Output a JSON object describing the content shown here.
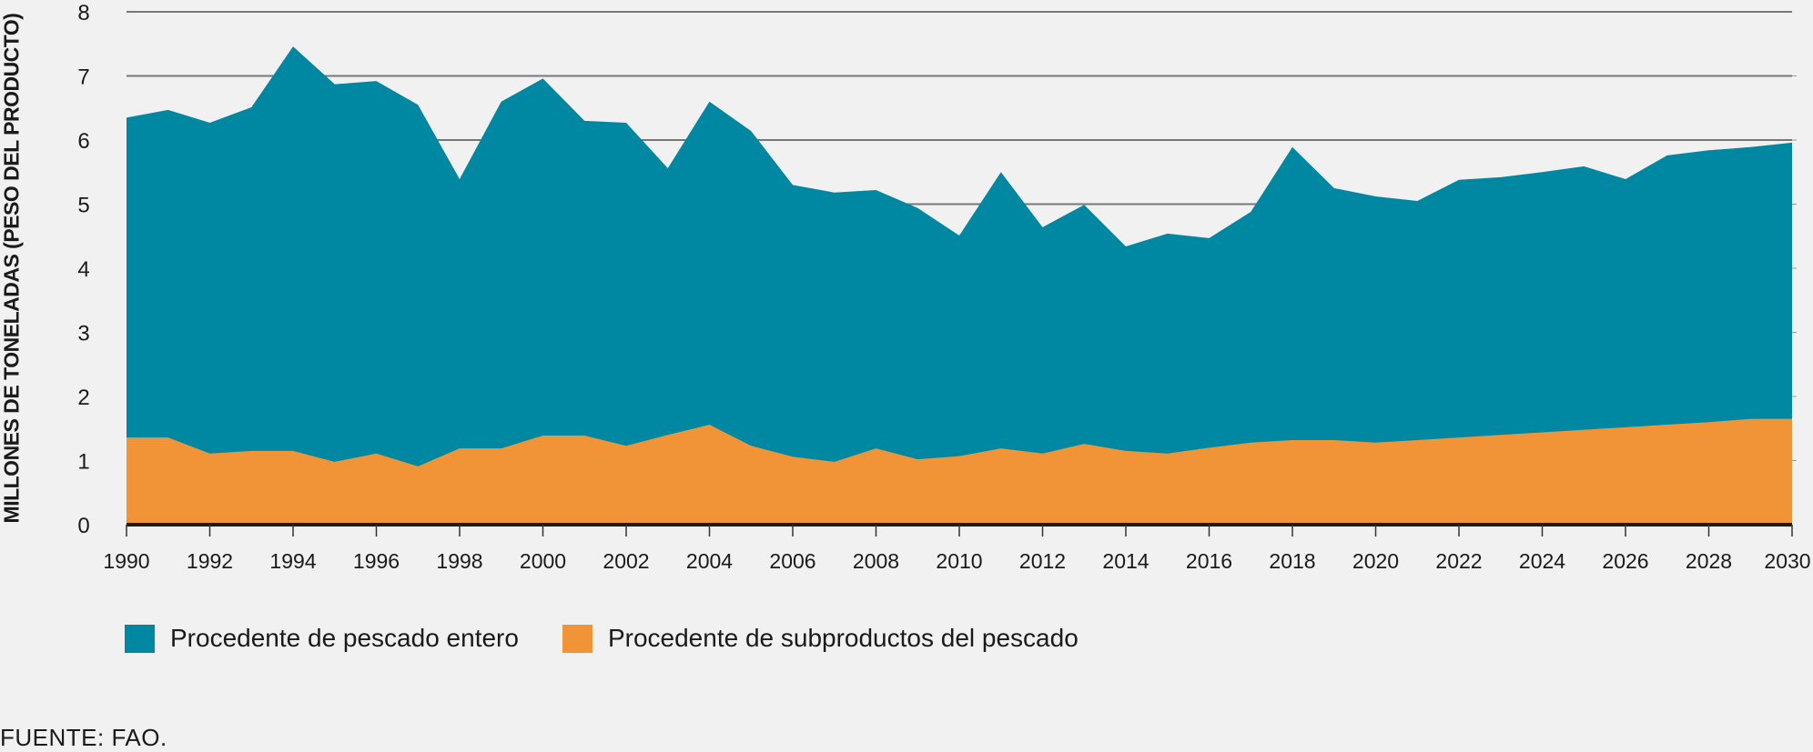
{
  "chart_data": {
    "type": "area",
    "stacked": true,
    "title": "",
    "xlabel": "",
    "ylabel": "MILLONES DE TONELADAS (PESO DEL PRODUCTO)",
    "ylim": [
      0,
      8
    ],
    "xlim": [
      1990,
      2030
    ],
    "yticks": [
      0,
      1,
      2,
      3,
      4,
      5,
      6,
      7,
      8
    ],
    "xticks": [
      1990,
      1992,
      1994,
      1996,
      1998,
      2000,
      2002,
      2004,
      2006,
      2008,
      2010,
      2012,
      2014,
      2016,
      2018,
      2020,
      2022,
      2024,
      2026,
      2028,
      2030
    ],
    "grid": true,
    "legend_position": "bottom-left",
    "x": [
      1990,
      1991,
      1992,
      1993,
      1994,
      1995,
      1996,
      1997,
      1998,
      1999,
      2000,
      2001,
      2002,
      2003,
      2004,
      2005,
      2006,
      2007,
      2008,
      2009,
      2010,
      2011,
      2012,
      2013,
      2014,
      2015,
      2016,
      2017,
      2018,
      2019,
      2020,
      2021,
      2022,
      2023,
      2024,
      2025,
      2026,
      2027,
      2028,
      2029,
      2030
    ],
    "series": [
      {
        "name": "Procedente de subproductos del pescado",
        "color": "#f09437",
        "values": [
          1.36,
          1.36,
          1.11,
          1.15,
          1.15,
          0.98,
          1.11,
          0.91,
          1.19,
          1.19,
          1.39,
          1.39,
          1.23,
          1.4,
          1.56,
          1.23,
          1.06,
          0.98,
          1.19,
          1.02,
          1.07,
          1.19,
          1.11,
          1.26,
          1.15,
          1.11,
          1.2,
          1.28,
          1.32,
          1.32,
          1.28,
          1.32,
          1.36,
          1.4,
          1.44,
          1.48,
          1.52,
          1.56,
          1.6,
          1.65,
          1.65
        ]
      },
      {
        "name": "Procedente de pescado entero",
        "color": "#0087a1",
        "total_values": [
          6.35,
          6.47,
          6.27,
          6.51,
          7.46,
          6.87,
          6.92,
          6.55,
          5.39,
          6.6,
          6.96,
          6.3,
          6.27,
          5.56,
          6.6,
          6.14,
          5.3,
          5.18,
          5.22,
          4.94,
          4.51,
          5.5,
          4.64,
          4.99,
          4.34,
          4.54,
          4.47,
          4.88,
          5.89,
          5.25,
          5.12,
          5.05,
          5.38,
          5.42,
          5.5,
          5.59,
          5.39,
          5.76,
          5.84,
          5.89,
          5.96
        ]
      }
    ]
  },
  "legend": {
    "items": [
      {
        "label": "Procedente de pescado entero",
        "color": "#0087a1"
      },
      {
        "label": "Procedente de subproductos del pescado",
        "color": "#f09437"
      }
    ]
  },
  "source": "FUENTE: FAO."
}
